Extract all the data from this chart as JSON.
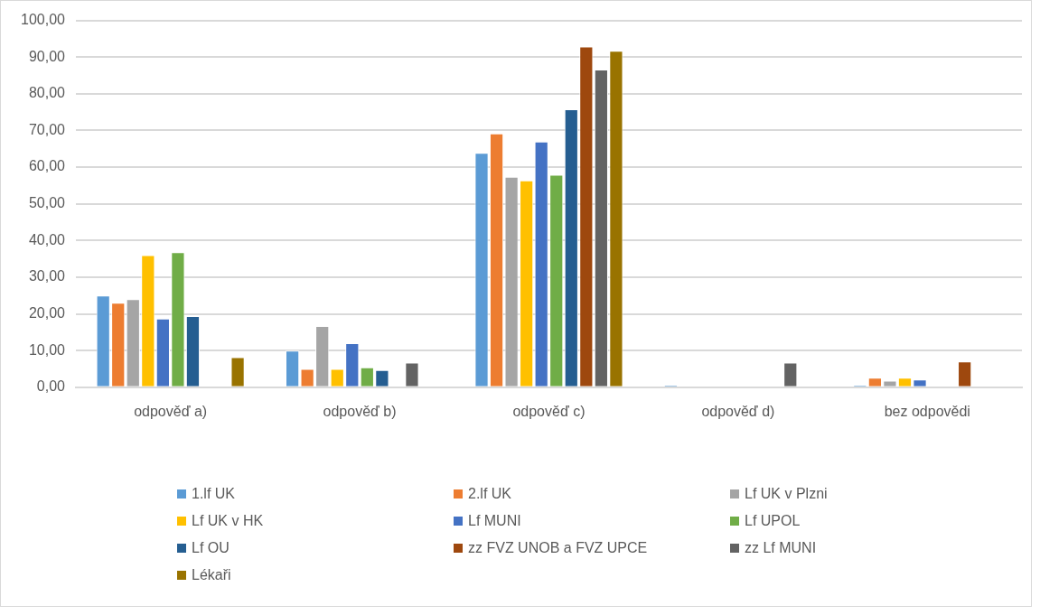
{
  "chart_data": {
    "type": "bar",
    "categories": [
      "odpověď a)",
      "odpověď b)",
      "odpověď c)",
      "odpověď d)",
      "bez odpovědi"
    ],
    "series": [
      {
        "name": "1.lf UK",
        "color": "#5b9bd5",
        "values": [
          25,
          10,
          63.9,
          0.6,
          0.6
        ]
      },
      {
        "name": "2.lf UK",
        "color": "#ed7d31",
        "values": [
          23,
          5,
          69.2,
          null,
          2.6
        ]
      },
      {
        "name": "Lf UK v Plzni",
        "color": "#a5a5a5",
        "values": [
          24,
          16.7,
          57.4,
          null,
          1.8
        ]
      },
      {
        "name": "Lf UK v HK",
        "color": "#ffc000",
        "values": [
          36,
          5,
          56.4,
          null,
          2.6
        ]
      },
      {
        "name": "Lf MUNI",
        "color": "#4472c4",
        "values": [
          18.7,
          12,
          67,
          null,
          2.1
        ]
      },
      {
        "name": "Lf UPOL",
        "color": "#70ad47",
        "values": [
          36.8,
          5.4,
          57.9,
          null,
          null
        ]
      },
      {
        "name": "Lf OU",
        "color": "#255e91",
        "values": [
          19.4,
          4.7,
          75.8,
          null,
          null
        ]
      },
      {
        "name": "zz FVZ UNOB a FVZ UPCE",
        "color": "#9e480e",
        "values": [
          null,
          null,
          92.9,
          null,
          7
        ]
      },
      {
        "name": "zz Lf MUNI",
        "color": "#636363",
        "values": [
          null,
          6.7,
          86.6,
          6.7,
          null
        ]
      },
      {
        "name": "Lékaři",
        "color": "#997300",
        "values": [
          8.2,
          null,
          91.7,
          null,
          null
        ]
      }
    ],
    "ylim": [
      0,
      100
    ],
    "yticks": [
      {
        "value": 0,
        "label": "0,00"
      },
      {
        "value": 10,
        "label": "10,00"
      },
      {
        "value": 20,
        "label": "20,00"
      },
      {
        "value": 30,
        "label": "30,00"
      },
      {
        "value": 40,
        "label": "40,00"
      },
      {
        "value": 50,
        "label": "50,00"
      },
      {
        "value": 60,
        "label": "60,00"
      },
      {
        "value": 70,
        "label": "70,00"
      },
      {
        "value": 80,
        "label": "80,00"
      },
      {
        "value": 90,
        "label": "90,00"
      },
      {
        "value": 100,
        "label": "100,00"
      }
    ],
    "grid": "y",
    "legend": "bottom"
  }
}
